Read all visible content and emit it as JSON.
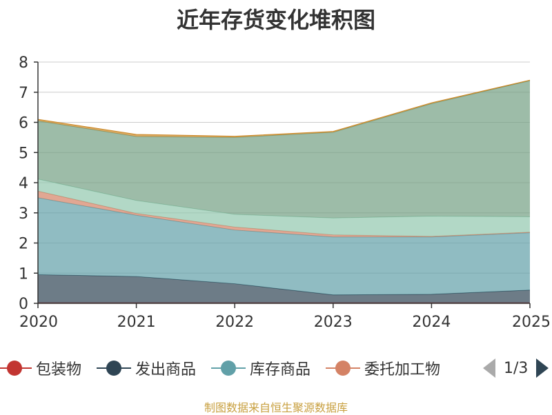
{
  "chart_data": {
    "type": "area",
    "title": "近年存货变化堆积图",
    "categories": [
      "2020",
      "2021",
      "2022",
      "2023",
      "2024",
      "2025"
    ],
    "ylim": [
      0,
      8
    ],
    "yticks": [
      0,
      1,
      2,
      3,
      4,
      5,
      6,
      7,
      8
    ],
    "grid": true,
    "stacked": true,
    "legend_position": "bottom",
    "series": [
      {
        "name": "包装物",
        "color": "#c23531",
        "values": [
          0.02,
          0.02,
          0.02,
          0.02,
          0.02,
          0.02
        ]
      },
      {
        "name": "发出商品",
        "color": "#2f4554",
        "values": [
          0.93,
          0.87,
          0.63,
          0.26,
          0.28,
          0.42
        ]
      },
      {
        "name": "库存商品",
        "color": "#61a0a8",
        "values": [
          2.55,
          2.03,
          1.78,
          1.92,
          1.9,
          1.9
        ]
      },
      {
        "name": "委托加工物",
        "color": "#d48265",
        "values": [
          0.22,
          0.06,
          0.1,
          0.07,
          0.02,
          0.02
        ]
      },
      {
        "name": "",
        "color": "#91c7ae",
        "values": [
          0.4,
          0.43,
          0.42,
          0.56,
          0.67,
          0.51
        ]
      },
      {
        "name": "",
        "color": "#749f83",
        "values": [
          1.93,
          2.12,
          2.55,
          2.84,
          3.73,
          4.51
        ]
      },
      {
        "name": "",
        "color": "#ca8622",
        "values": [
          0.05,
          0.07,
          0.04,
          0.03,
          0.03,
          0.02
        ]
      }
    ]
  },
  "legend": {
    "items": [
      "包装物",
      "发出商品",
      "库存商品",
      "委托加工物"
    ],
    "page": "1/3"
  },
  "source_note": "制图数据来自恒生聚源数据库"
}
